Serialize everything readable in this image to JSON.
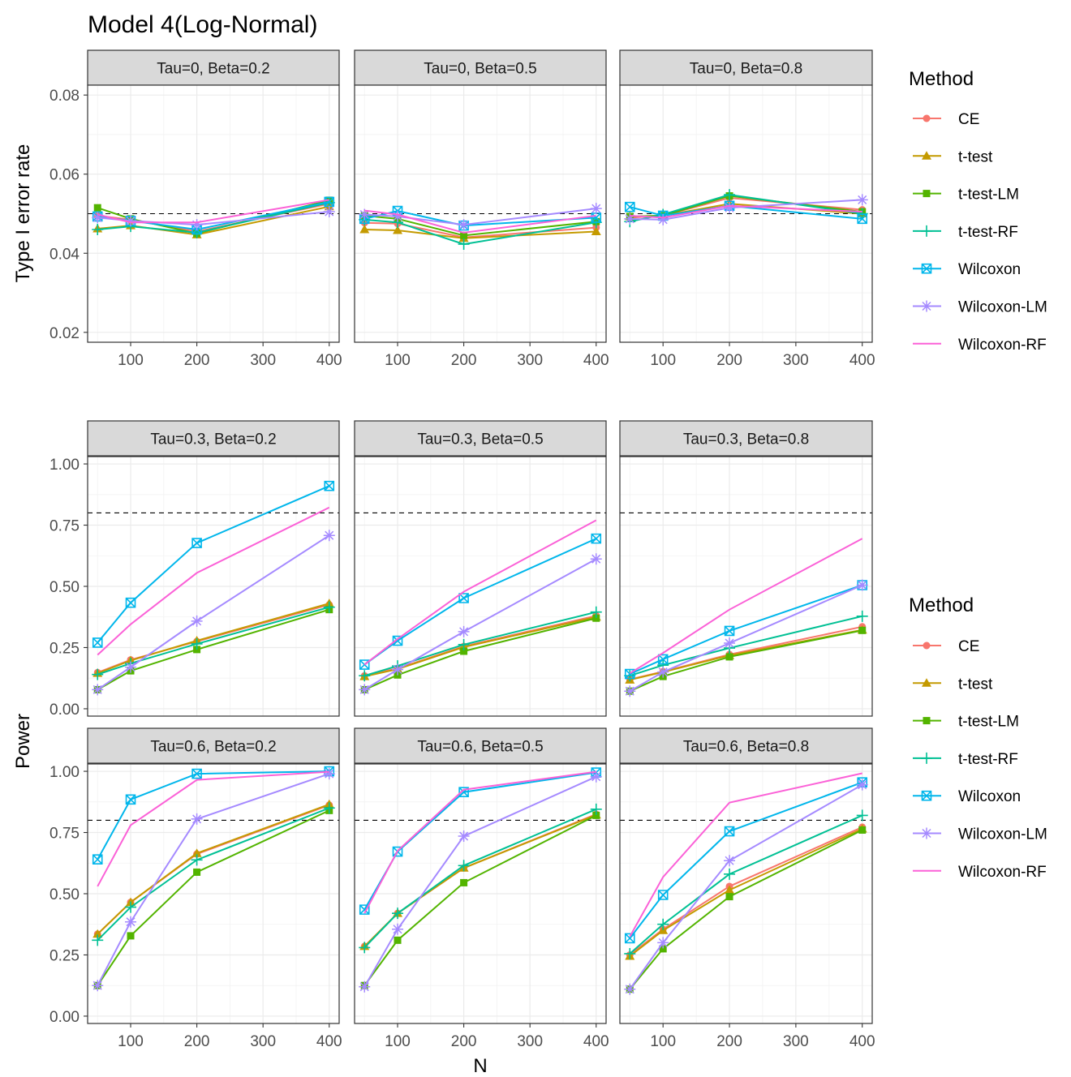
{
  "title": "Model 4(Log-Normal)",
  "colors": {
    "CE": "#F8766D",
    "t-test": "#C49A00",
    "t-test-LM": "#53B400",
    "t-test-RF": "#00C094",
    "Wilcoxon": "#00B6EB",
    "Wilcoxon-LM": "#A58AFF",
    "Wilcoxon-RF": "#FB61D7"
  },
  "chart_data": [
    {
      "type": "line",
      "name": "type-i-error",
      "ylabel": "Type I error rate",
      "xlabel": "",
      "x": [
        50,
        100,
        200,
        400
      ],
      "xlim": [
        35,
        415
      ],
      "ylim": [
        0.0175,
        0.0825
      ],
      "yticks": [
        0.02,
        0.04,
        0.06,
        0.08
      ],
      "ytick_labels": [
        "0.02",
        "0.04",
        "0.06",
        "0.08"
      ],
      "xticks": [
        100,
        200,
        300,
        400
      ],
      "xtick_labels": [
        "100",
        "200",
        "300",
        "400"
      ],
      "reference_line": 0.05,
      "grid": true,
      "legend": {
        "title": "Method",
        "position": "right",
        "entries": [
          "CE",
          "t-test",
          "t-test-LM",
          "t-test-RF",
          "Wilcoxon",
          "Wilcoxon-LM",
          "Wilcoxon-RF"
        ]
      },
      "panels": [
        {
          "label": "Tau=0, Beta=0.2",
          "series": [
            {
              "name": "CE",
              "values": [
                0.0495,
                0.0485,
                0.0455,
                0.0525
              ]
            },
            {
              "name": "t-test",
              "values": [
                0.0462,
                0.047,
                0.0447,
                0.0518
              ]
            },
            {
              "name": "t-test-LM",
              "values": [
                0.0515,
                0.0487,
                0.045,
                0.0534
              ]
            },
            {
              "name": "t-test-RF",
              "values": [
                0.046,
                0.0468,
                0.0452,
                0.0528
              ]
            },
            {
              "name": "Wilcoxon",
              "values": [
                0.0493,
                0.0482,
                0.046,
                0.053
              ]
            },
            {
              "name": "Wilcoxon-LM",
              "values": [
                0.049,
                0.0482,
                0.0472,
                0.0505
              ]
            },
            {
              "name": "Wilcoxon-RF",
              "values": [
                0.0498,
                0.0478,
                0.0478,
                0.0535
              ]
            }
          ]
        },
        {
          "label": "Tau=0, Beta=0.5",
          "series": [
            {
              "name": "CE",
              "values": [
                0.0477,
                0.0475,
                0.044,
                0.0465
              ]
            },
            {
              "name": "t-test",
              "values": [
                0.046,
                0.0458,
                0.0438,
                0.0455
              ]
            },
            {
              "name": "t-test-LM",
              "values": [
                0.0495,
                0.0487,
                0.0445,
                0.048
              ]
            },
            {
              "name": "t-test-RF",
              "values": [
                0.0485,
                0.0478,
                0.0423,
                0.0478
              ]
            },
            {
              "name": "Wilcoxon",
              "values": [
                0.0487,
                0.0507,
                0.047,
                0.049
              ]
            },
            {
              "name": "Wilcoxon-LM",
              "values": [
                0.0498,
                0.0493,
                0.0472,
                0.0513
              ]
            },
            {
              "name": "Wilcoxon-RF",
              "values": [
                0.0508,
                0.0498,
                0.0452,
                0.0495
              ]
            }
          ]
        },
        {
          "label": "Tau=0, Beta=0.8",
          "series": [
            {
              "name": "CE",
              "values": [
                0.049,
                0.0495,
                0.054,
                0.051
              ]
            },
            {
              "name": "t-test",
              "values": [
                0.0493,
                0.0495,
                0.0525,
                0.05
              ]
            },
            {
              "name": "t-test-LM",
              "values": [
                0.0493,
                0.0495,
                0.0545,
                0.0505
              ]
            },
            {
              "name": "t-test-RF",
              "values": [
                0.048,
                0.0498,
                0.0548,
                0.05
              ]
            },
            {
              "name": "Wilcoxon",
              "values": [
                0.0517,
                0.0495,
                0.052,
                0.0487
              ]
            },
            {
              "name": "Wilcoxon-LM",
              "values": [
                0.0487,
                0.0485,
                0.0515,
                0.0535
              ]
            },
            {
              "name": "Wilcoxon-RF",
              "values": [
                0.0495,
                0.049,
                0.052,
                0.0505
              ]
            }
          ]
        }
      ]
    },
    {
      "type": "line",
      "name": "power",
      "ylabel": "Power",
      "xlabel": "N",
      "x": [
        50,
        100,
        200,
        400
      ],
      "xlim": [
        35,
        415
      ],
      "ylim": [
        -0.03,
        1.03
      ],
      "yticks": [
        0.0,
        0.25,
        0.5,
        0.75,
        1.0
      ],
      "ytick_labels": [
        "0.00",
        "0.25",
        "0.50",
        "0.75",
        "1.00"
      ],
      "xticks": [
        100,
        200,
        300,
        400
      ],
      "xtick_labels": [
        "100",
        "200",
        "300",
        "400"
      ],
      "reference_line": 0.8,
      "grid": true,
      "legend": {
        "title": "Method",
        "position": "right",
        "entries": [
          "CE",
          "t-test",
          "t-test-LM",
          "t-test-RF",
          "Wilcoxon",
          "Wilcoxon-LM",
          "Wilcoxon-RF"
        ]
      },
      "panels": [
        {
          "label": "Tau=0.3, Beta=0.2",
          "series": [
            {
              "name": "CE",
              "values": [
                0.148,
                0.2,
                0.275,
                0.425
              ]
            },
            {
              "name": "t-test",
              "values": [
                0.145,
                0.197,
                0.278,
                0.43
              ]
            },
            {
              "name": "t-test-LM",
              "values": [
                0.078,
                0.155,
                0.242,
                0.405
              ]
            },
            {
              "name": "t-test-RF",
              "values": [
                0.14,
                0.185,
                0.265,
                0.415
              ]
            },
            {
              "name": "Wilcoxon",
              "values": [
                0.27,
                0.433,
                0.677,
                0.91
              ]
            },
            {
              "name": "Wilcoxon-LM",
              "values": [
                0.078,
                0.17,
                0.358,
                0.708
              ]
            },
            {
              "name": "Wilcoxon-RF",
              "values": [
                0.22,
                0.345,
                0.555,
                0.822
              ]
            }
          ]
        },
        {
          "label": "Tau=0.3, Beta=0.5",
          "series": [
            {
              "name": "CE",
              "values": [
                0.135,
                0.165,
                0.255,
                0.38
              ]
            },
            {
              "name": "t-test",
              "values": [
                0.132,
                0.162,
                0.252,
                0.375
              ]
            },
            {
              "name": "t-test-LM",
              "values": [
                0.078,
                0.138,
                0.235,
                0.37
              ]
            },
            {
              "name": "t-test-RF",
              "values": [
                0.135,
                0.175,
                0.262,
                0.395
              ]
            },
            {
              "name": "Wilcoxon",
              "values": [
                0.18,
                0.278,
                0.452,
                0.695
              ]
            },
            {
              "name": "Wilcoxon-LM",
              "values": [
                0.078,
                0.16,
                0.315,
                0.612
              ]
            },
            {
              "name": "Wilcoxon-RF",
              "values": [
                0.18,
                0.285,
                0.478,
                0.77
              ]
            }
          ]
        },
        {
          "label": "Tau=0.3, Beta=0.8",
          "series": [
            {
              "name": "CE",
              "values": [
                0.12,
                0.152,
                0.222,
                0.335
              ]
            },
            {
              "name": "t-test",
              "values": [
                0.118,
                0.15,
                0.218,
                0.322
              ]
            },
            {
              "name": "t-test-LM",
              "values": [
                0.072,
                0.132,
                0.212,
                0.32
              ]
            },
            {
              "name": "t-test-RF",
              "values": [
                0.135,
                0.178,
                0.248,
                0.378
              ]
            },
            {
              "name": "Wilcoxon",
              "values": [
                0.142,
                0.202,
                0.318,
                0.505
              ]
            },
            {
              "name": "Wilcoxon-LM",
              "values": [
                0.072,
                0.15,
                0.268,
                0.505
              ]
            },
            {
              "name": "Wilcoxon-RF",
              "values": [
                0.145,
                0.228,
                0.405,
                0.695
              ]
            }
          ]
        }
      ]
    },
    {
      "type": "line",
      "name": "power",
      "ylabel": "Power",
      "xlabel": "N",
      "x": [
        50,
        100,
        200,
        400
      ],
      "xlim": [
        35,
        415
      ],
      "ylim": [
        -0.03,
        1.03
      ],
      "yticks": [
        0.0,
        0.25,
        0.5,
        0.75,
        1.0
      ],
      "ytick_labels": [
        "0.00",
        "0.25",
        "0.50",
        "0.75",
        "1.00"
      ],
      "xticks": [
        100,
        200,
        300,
        400
      ],
      "xtick_labels": [
        "100",
        "200",
        "300",
        "400"
      ],
      "reference_line": 0.8,
      "grid": true,
      "panels": [
        {
          "label": "Tau=0.6, Beta=0.2",
          "series": [
            {
              "name": "CE",
              "values": [
                0.335,
                0.465,
                0.662,
                0.862
              ]
            },
            {
              "name": "t-test",
              "values": [
                0.335,
                0.465,
                0.665,
                0.865
              ]
            },
            {
              "name": "t-test-LM",
              "values": [
                0.125,
                0.328,
                0.588,
                0.84
              ]
            },
            {
              "name": "t-test-RF",
              "values": [
                0.31,
                0.445,
                0.638,
                0.85
              ]
            },
            {
              "name": "Wilcoxon",
              "values": [
                0.64,
                0.885,
                0.99,
                1.0
              ]
            },
            {
              "name": "Wilcoxon-LM",
              "values": [
                0.125,
                0.385,
                0.805,
                0.99
              ]
            },
            {
              "name": "Wilcoxon-RF",
              "values": [
                0.53,
                0.78,
                0.965,
                0.998
              ]
            }
          ]
        },
        {
          "label": "Tau=0.6, Beta=0.5",
          "series": [
            {
              "name": "CE",
              "values": [
                0.285,
                0.42,
                0.605,
                0.825
              ]
            },
            {
              "name": "t-test",
              "values": [
                0.285,
                0.42,
                0.605,
                0.822
              ]
            },
            {
              "name": "t-test-LM",
              "values": [
                0.125,
                0.31,
                0.545,
                0.82
              ]
            },
            {
              "name": "t-test-RF",
              "values": [
                0.28,
                0.42,
                0.615,
                0.845
              ]
            },
            {
              "name": "Wilcoxon",
              "values": [
                0.435,
                0.672,
                0.915,
                0.995
              ]
            },
            {
              "name": "Wilcoxon-LM",
              "values": [
                0.12,
                0.355,
                0.735,
                0.978
              ]
            },
            {
              "name": "Wilcoxon-RF",
              "values": [
                0.42,
                0.675,
                0.925,
                0.998
              ]
            }
          ]
        },
        {
          "label": "Tau=0.6, Beta=0.8",
          "series": [
            {
              "name": "CE",
              "values": [
                0.25,
                0.355,
                0.53,
                0.772
              ]
            },
            {
              "name": "t-test",
              "values": [
                0.245,
                0.35,
                0.515,
                0.765
              ]
            },
            {
              "name": "t-test-LM",
              "values": [
                0.11,
                0.275,
                0.488,
                0.76
              ]
            },
            {
              "name": "t-test-RF",
              "values": [
                0.255,
                0.375,
                0.58,
                0.82
              ]
            },
            {
              "name": "Wilcoxon",
              "values": [
                0.318,
                0.495,
                0.755,
                0.955
              ]
            },
            {
              "name": "Wilcoxon-LM",
              "values": [
                0.11,
                0.3,
                0.635,
                0.945
              ]
            },
            {
              "name": "Wilcoxon-RF",
              "values": [
                0.325,
                0.568,
                0.872,
                0.992
              ]
            }
          ]
        }
      ]
    }
  ]
}
